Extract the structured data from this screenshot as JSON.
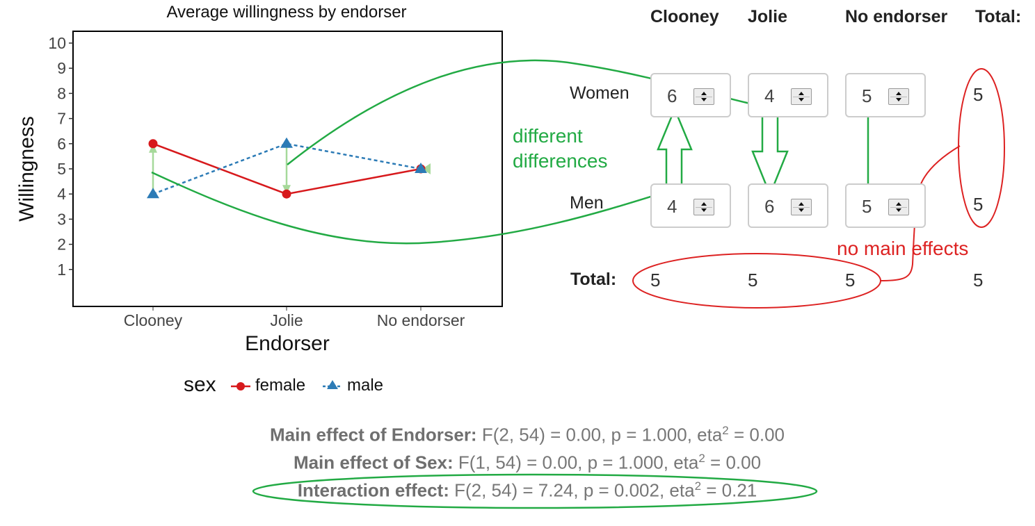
{
  "chart_data": {
    "type": "line",
    "title": "Average willingness by endorser",
    "xlabel": "Endorser",
    "ylabel": "Willingness",
    "categories": [
      "Clooney",
      "Jolie",
      "No endorser"
    ],
    "yticks": [
      1,
      2,
      3,
      4,
      5,
      6,
      7,
      8,
      9,
      10
    ],
    "ylim": [
      0,
      10.5
    ],
    "legend_title": "sex",
    "legend_placement": "bottom",
    "series": [
      {
        "name": "female",
        "values": [
          6,
          4,
          5
        ],
        "color": "#d7191c",
        "marker": "circle",
        "linestyle": "solid"
      },
      {
        "name": "male",
        "values": [
          4,
          6,
          5
        ],
        "color": "#2c7bb6",
        "marker": "triangle",
        "linestyle": "dashed"
      }
    ]
  },
  "table": {
    "columns": [
      "Clooney",
      "Jolie",
      "No endorser",
      "Total:"
    ],
    "rows": [
      {
        "label": "Women",
        "values": [
          "6",
          "4",
          "5"
        ],
        "total": "5"
      },
      {
        "label": "Men",
        "values": [
          "4",
          "6",
          "5"
        ],
        "total": "5"
      }
    ],
    "total_label": "Total:",
    "column_totals": [
      "5",
      "5",
      "5"
    ],
    "grand_total": "5"
  },
  "annotations": {
    "different_differences": [
      "different",
      "differences"
    ],
    "no_main_effects": "no main effects",
    "green": "#22aa44",
    "red": "#dd2222",
    "light_green": "#a6d99a"
  },
  "stats": [
    {
      "label": "Main effect of Endorser:",
      "pre": "F(2, 54) = 0.00, p = 1.000, eta",
      "sup": "2",
      "post": " = 0.00"
    },
    {
      "label": "Main effect of Sex:",
      "pre": "F(1, 54) = 0.00, p = 1.000, eta",
      "sup": "2",
      "post": " = 0.00"
    },
    {
      "label": "Interaction effect:",
      "pre": "F(2, 54) = 7.24, p = 0.002, eta",
      "sup": "2",
      "post": " = 0.21"
    }
  ]
}
